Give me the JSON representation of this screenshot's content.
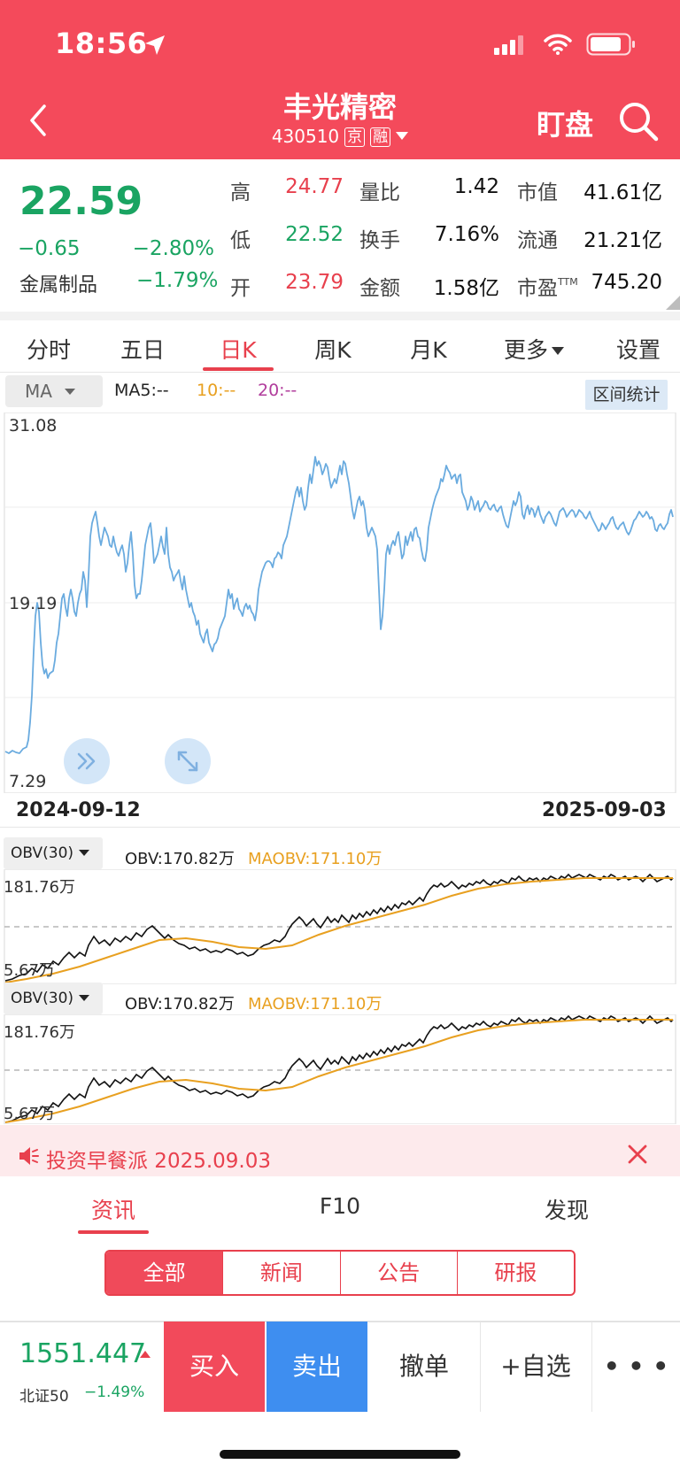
{
  "status_bar": {
    "time": "18:56"
  },
  "header": {
    "stock_name": "丰光精密",
    "stock_code": "430510",
    "badges": [
      "京",
      "融"
    ],
    "watch_label": "盯盘"
  },
  "quote": {
    "price": "22.59",
    "change": "−0.65",
    "change_pct": "−2.80%",
    "sector_name": "金属制品",
    "sector_change": "−1.79%",
    "stats": [
      {
        "label": "高",
        "value": "24.77"
      },
      {
        "label": "低",
        "value": "22.52"
      },
      {
        "label": "开",
        "value": "23.79"
      },
      {
        "label": "量比",
        "value": "1.42"
      },
      {
        "label": "换手",
        "value": "7.16%"
      },
      {
        "label": "金额",
        "value": "1.58亿"
      },
      {
        "label": "市值",
        "value": "41.61亿"
      },
      {
        "label": "流通",
        "value": "21.21亿"
      },
      {
        "label": "市盈",
        "label_sup": "TTM",
        "value": "745.20"
      }
    ]
  },
  "period_tabs": [
    {
      "label": "分时"
    },
    {
      "label": "五日"
    },
    {
      "label": "日K"
    },
    {
      "label": "周K"
    },
    {
      "label": "月K"
    },
    {
      "label": "更多"
    },
    {
      "label": "设置"
    }
  ],
  "indicator": {
    "select": "MA",
    "ma5": "MA5:--",
    "ma10": "10:--",
    "ma20": "20:--",
    "range_stats": "区间统计"
  },
  "colors": {
    "ma5": "#222222",
    "ma10": "#e8a020",
    "ma20": "#b13d9c",
    "price_line": "#6aabdf",
    "obv_line": "#111111",
    "maobv_line": "#e8a020"
  },
  "price_chart": {
    "y_max_label": "31.08",
    "y_mid_label": "19.19",
    "y_min_label": "7.29",
    "start_date": "2024-09-12",
    "end_date": "2025-09-03"
  },
  "obv_panels": [
    {
      "select": "OBV(30)",
      "obv": "OBV:170.82万",
      "maobv": "MAOBV:171.10万",
      "y_max": "181.76万",
      "y_min": "5.67万"
    },
    {
      "select": "OBV(30)",
      "obv": "OBV:170.82万",
      "maobv": "MAOBV:171.10万",
      "y_max": "181.76万",
      "y_min": "5.67万"
    }
  ],
  "announcement": {
    "text": "投资早餐派 2025.09.03"
  },
  "bottom_tabs": [
    {
      "label": "资讯"
    },
    {
      "label": "F10"
    },
    {
      "label": "发现"
    }
  ],
  "segments": [
    {
      "label": "全部"
    },
    {
      "label": "新闻"
    },
    {
      "label": "公告"
    },
    {
      "label": "研报"
    }
  ],
  "index": {
    "value": "1551.447",
    "name": "北证50",
    "change_pct": "−1.49%"
  },
  "actions": {
    "buy": "买入",
    "sell": "卖出",
    "cancel": "撤单",
    "add_watch": "+自选",
    "more": "• • •"
  }
}
